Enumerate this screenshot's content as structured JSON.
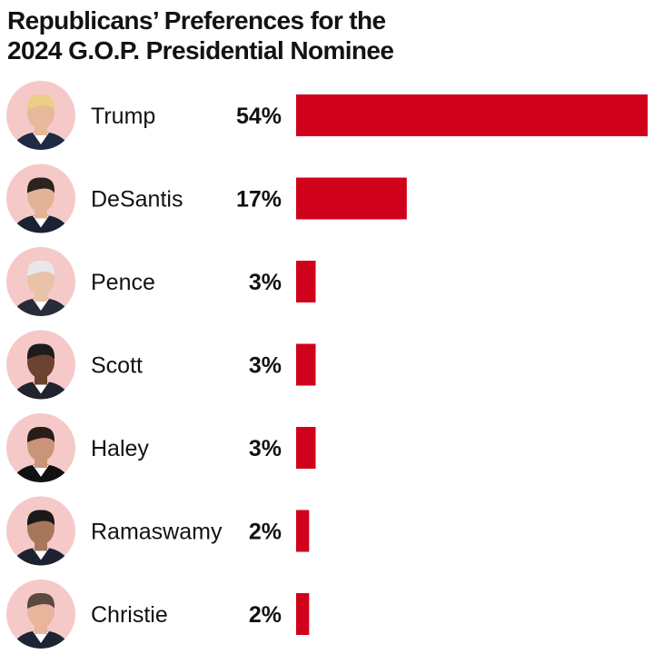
{
  "title": "Republicans’ Preferences for the 2024 G.O.P. Presidential Nominee",
  "title_lines": [
    "Republicans’ Preferences for the",
    "2024 G.O.P. Presidential Nominee"
  ],
  "colors": {
    "bar": "#d0021b",
    "avatar_bg": "#f6c9c9"
  },
  "chart_data": {
    "type": "bar",
    "orientation": "horizontal",
    "title": "Republicans’ Preferences for the 2024 G.O.P. Presidential Nominee",
    "categories": [
      "Trump",
      "DeSantis",
      "Pence",
      "Scott",
      "Haley",
      "Ramaswamy",
      "Christie"
    ],
    "values": [
      54,
      17,
      3,
      3,
      3,
      2,
      2
    ],
    "value_labels": [
      "54%",
      "17%",
      "3%",
      "3%",
      "3%",
      "2%",
      "2%"
    ],
    "unit": "%",
    "xlim": [
      0,
      54
    ],
    "grid": false,
    "legend": "none",
    "row_icons": [
      "trump-portrait",
      "desantis-portrait",
      "pence-portrait",
      "scott-portrait",
      "haley-portrait",
      "ramaswamy-portrait",
      "christie-portrait"
    ]
  }
}
